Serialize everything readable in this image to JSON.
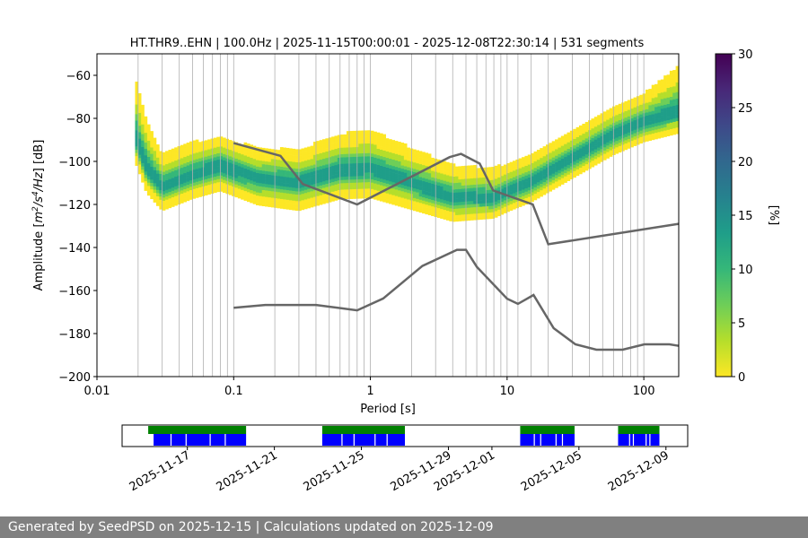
{
  "chart_data": {
    "type": "heatmap",
    "title": "HT.THR9..EHN | 100.0Hz | 2025-11-15T00:00:01 - 2025-12-08T22:30:14 | 531 segments",
    "xlabel": "Period [s]",
    "ylabel_parts": [
      "Amplitude [",
      "m",
      "2",
      "/s",
      "4",
      "/Hz",
      "] [dB]"
    ],
    "x_scale": "log",
    "xlim": [
      0.01,
      180
    ],
    "ylim": [
      -200,
      -50
    ],
    "x_ticks": [
      {
        "value": 0.01,
        "label": "0.01"
      },
      {
        "value": 0.1,
        "label": "0.1"
      },
      {
        "value": 1,
        "label": "1"
      },
      {
        "value": 10,
        "label": "10"
      },
      {
        "value": 100,
        "label": "100"
      }
    ],
    "y_ticks": [
      {
        "value": -60,
        "label": "−60"
      },
      {
        "value": -80,
        "label": "−80"
      },
      {
        "value": -100,
        "label": "−100"
      },
      {
        "value": -120,
        "label": "−120"
      },
      {
        "value": -140,
        "label": "−140"
      },
      {
        "value": -160,
        "label": "−160"
      },
      {
        "value": -180,
        "label": "−180"
      },
      {
        "value": -200,
        "label": "−200"
      }
    ],
    "vertical_gridlines_period_s": [
      0.02,
      0.03,
      0.04,
      0.05,
      0.06,
      0.07,
      0.08,
      0.09,
      0.1,
      0.2,
      0.3,
      0.4,
      0.5,
      0.6,
      0.7,
      0.8,
      0.9,
      1,
      2,
      3,
      4,
      5,
      6,
      7,
      8,
      9,
      10,
      12,
      15,
      20,
      30,
      40,
      50,
      60,
      70,
      80,
      90,
      100
    ],
    "psd_density": {
      "mode_curve": [
        {
          "period": 0.019,
          "db": -88
        },
        {
          "period": 0.023,
          "db": -103
        },
        {
          "period": 0.03,
          "db": -112
        },
        {
          "period": 0.05,
          "db": -106
        },
        {
          "period": 0.08,
          "db": -102
        },
        {
          "period": 0.15,
          "db": -108
        },
        {
          "period": 0.3,
          "db": -110
        },
        {
          "period": 0.6,
          "db": -104
        },
        {
          "period": 1.0,
          "db": -103
        },
        {
          "period": 2.0,
          "db": -110
        },
        {
          "period": 4.0,
          "db": -117
        },
        {
          "period": 8.0,
          "db": -117
        },
        {
          "period": 15.0,
          "db": -110
        },
        {
          "period": 30.0,
          "db": -99
        },
        {
          "period": 60.0,
          "db": -88
        },
        {
          "period": 100.0,
          "db": -82
        },
        {
          "period": 180.0,
          "db": -77
        }
      ],
      "spread_db": [
        {
          "period": 0.019,
          "above": 27,
          "below": 12
        },
        {
          "period": 0.03,
          "above": 15,
          "below": 11
        },
        {
          "period": 0.1,
          "above": 13,
          "below": 12
        },
        {
          "period": 1.0,
          "above": 17,
          "below": 14
        },
        {
          "period": 10.0,
          "above": 13,
          "below": 9
        },
        {
          "period": 100.0,
          "above": 13,
          "below": 9
        },
        {
          "period": 180.0,
          "above": 21,
          "below": 10
        }
      ],
      "peak_percent": 14
    },
    "nhnm": [
      {
        "period": 0.1,
        "db": -91.5
      },
      {
        "period": 0.22,
        "db": -97.4
      },
      {
        "period": 0.32,
        "db": -110.5
      },
      {
        "period": 0.8,
        "db": -120.0
      },
      {
        "period": 3.8,
        "db": -98.0
      },
      {
        "period": 4.6,
        "db": -96.5
      },
      {
        "period": 6.3,
        "db": -101.0
      },
      {
        "period": 7.9,
        "db": -113.5
      },
      {
        "period": 15.4,
        "db": -120.0
      },
      {
        "period": 20.0,
        "db": -138.5
      },
      {
        "period": 180.0,
        "db": -129.0
      }
    ],
    "nlnm": [
      {
        "period": 0.1,
        "db": -168.0
      },
      {
        "period": 0.17,
        "db": -166.7
      },
      {
        "period": 0.4,
        "db": -166.7
      },
      {
        "period": 0.8,
        "db": -169.2
      },
      {
        "period": 1.24,
        "db": -163.7
      },
      {
        "period": 2.4,
        "db": -148.6
      },
      {
        "period": 4.3,
        "db": -141.1
      },
      {
        "period": 5.0,
        "db": -141.1
      },
      {
        "period": 6.0,
        "db": -149.0
      },
      {
        "period": 10.0,
        "db": -163.8
      },
      {
        "period": 12.0,
        "db": -166.2
      },
      {
        "period": 15.6,
        "db": -162.1
      },
      {
        "period": 21.9,
        "db": -177.5
      },
      {
        "period": 31.6,
        "db": -185.0
      },
      {
        "period": 45.0,
        "db": -187.5
      },
      {
        "period": 70.0,
        "db": -187.5
      },
      {
        "period": 101.0,
        "db": -185.0
      },
      {
        "period": 154.0,
        "db": -185.0
      },
      {
        "period": 180.0,
        "db": -185.7
      }
    ],
    "colorbar": {
      "label": "[%]",
      "range": [
        0,
        30
      ],
      "ticks": [
        {
          "value": 0,
          "label": "0"
        },
        {
          "value": 5,
          "label": "5"
        },
        {
          "value": 10,
          "label": "10"
        },
        {
          "value": 15,
          "label": "15"
        },
        {
          "value": 20,
          "label": "20"
        },
        {
          "value": 25,
          "label": "25"
        },
        {
          "value": 30,
          "label": "30"
        }
      ],
      "colormap": [
        "#fde725",
        "#b5de2b",
        "#6ece58",
        "#35b779",
        "#1f9e89",
        "#26828e",
        "#31688e",
        "#3e4989",
        "#482878",
        "#440154"
      ]
    }
  },
  "timeline": {
    "start": "2025-11-14",
    "end": "2025-12-10",
    "data_coverage": [
      {
        "start": "2025-11-15.2",
        "end": "2025-11-19.7"
      },
      {
        "start": "2025-11-23.2",
        "end": "2025-11-27.0"
      },
      {
        "start": "2025-12-02.3",
        "end": "2025-12-04.8"
      },
      {
        "start": "2025-12-06.8",
        "end": "2025-12-08.7"
      }
    ],
    "date_labels": [
      {
        "date": "2025-11-17",
        "label": "2025-11-17"
      },
      {
        "date": "2025-11-21",
        "label": "2025-11-21"
      },
      {
        "date": "2025-11-25",
        "label": "2025-11-25"
      },
      {
        "date": "2025-11-29",
        "label": "2025-11-29"
      },
      {
        "date": "2025-12-01",
        "label": "2025-12-01"
      },
      {
        "date": "2025-12-05",
        "label": "2025-12-05"
      },
      {
        "date": "2025-12-09",
        "label": "2025-12-09"
      }
    ],
    "colors": {
      "used": "#008000",
      "available": "#0000ff",
      "gap": "#ffffff"
    }
  },
  "footer": {
    "text": "Generated by SeedPSD on 2025-12-15 | Calculations updated on 2025-12-09"
  },
  "colors": {
    "model_line": "#666666",
    "grid": "#b0b0b0"
  }
}
